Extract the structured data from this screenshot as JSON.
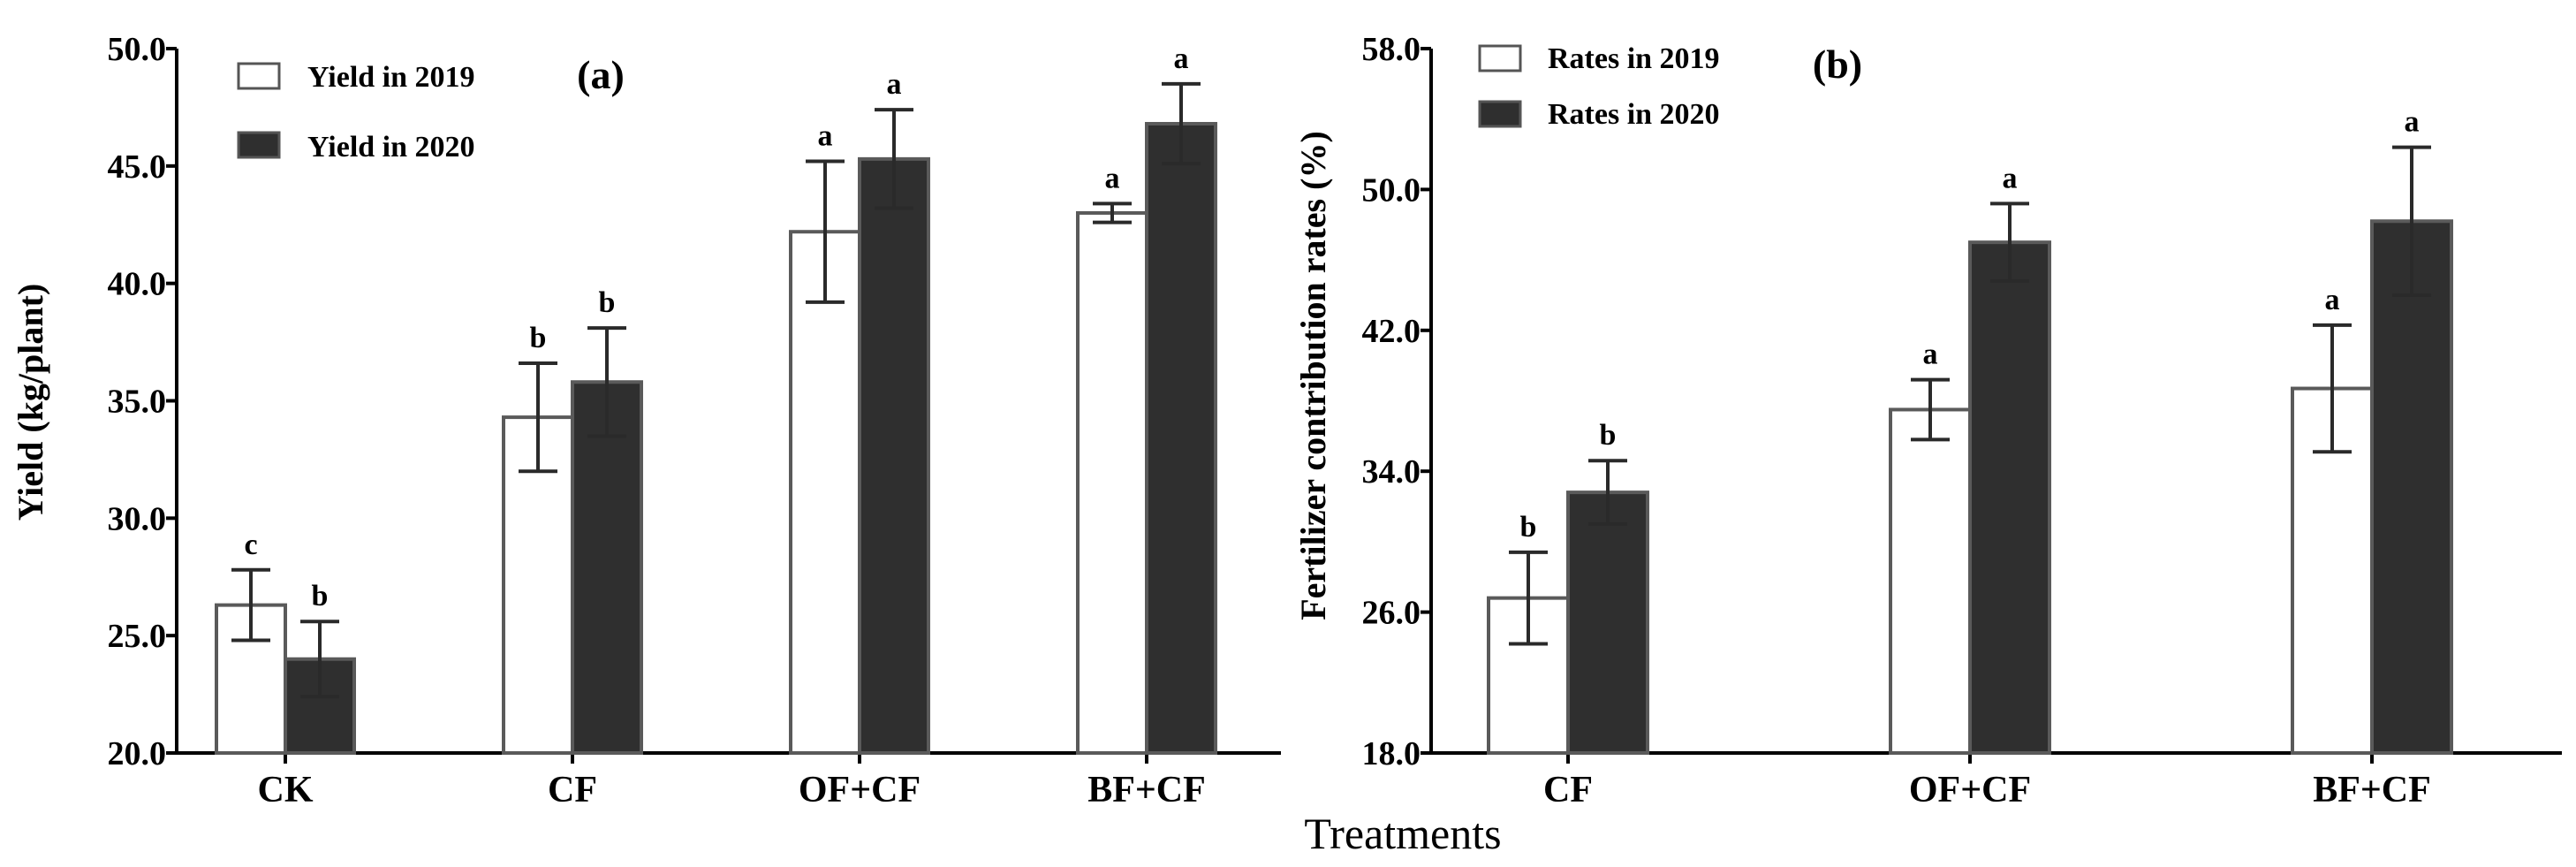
{
  "x_title": "Treatments",
  "chart_data": [
    {
      "type": "bar",
      "panel_label": "(a)",
      "ylabel": "Yield (kg/plant)",
      "ylim": [
        20.0,
        50.0
      ],
      "yticks": [
        "20.0",
        "25.0",
        "30.0",
        "35.0",
        "40.0",
        "45.0",
        "50.0"
      ],
      "categories": [
        "CK",
        "CF",
        "OF+CF",
        "BF+CF"
      ],
      "series": [
        {
          "name": "Yield in 2019",
          "fill": "#ffffff",
          "values": [
            26.3,
            34.3,
            42.2,
            43.0
          ],
          "errors": [
            1.5,
            2.3,
            3.0,
            0.4
          ],
          "letters": [
            "c",
            "b",
            "a",
            "a"
          ]
        },
        {
          "name": "Yield in 2020",
          "fill": "#2f2f2f",
          "values": [
            24.0,
            35.8,
            45.3,
            46.8
          ],
          "errors": [
            1.6,
            2.3,
            2.1,
            1.7
          ],
          "letters": [
            "b",
            "b",
            "a",
            "a"
          ]
        }
      ],
      "legend_position": "top-left"
    },
    {
      "type": "bar",
      "panel_label": "(b)",
      "ylabel": "Fertilizer contribution rates (%)",
      "ylim": [
        18.0,
        58.0
      ],
      "yticks": [
        "18.0",
        "26.0",
        "34.0",
        "42.0",
        "50.0",
        "58.0"
      ],
      "categories": [
        "CF",
        "OF+CF",
        "BF+CF"
      ],
      "series": [
        {
          "name": "Rates in 2019",
          "fill": "#ffffff",
          "values": [
            26.8,
            37.5,
            38.7
          ],
          "errors": [
            2.6,
            1.7,
            3.6
          ],
          "letters": [
            "b",
            "a",
            "a"
          ]
        },
        {
          "name": "Rates in 2020",
          "fill": "#2f2f2f",
          "values": [
            32.8,
            47.0,
            48.2
          ],
          "errors": [
            1.8,
            2.2,
            4.2
          ],
          "letters": [
            "b",
            "a",
            "a"
          ]
        }
      ],
      "legend_position": "top-left"
    }
  ]
}
